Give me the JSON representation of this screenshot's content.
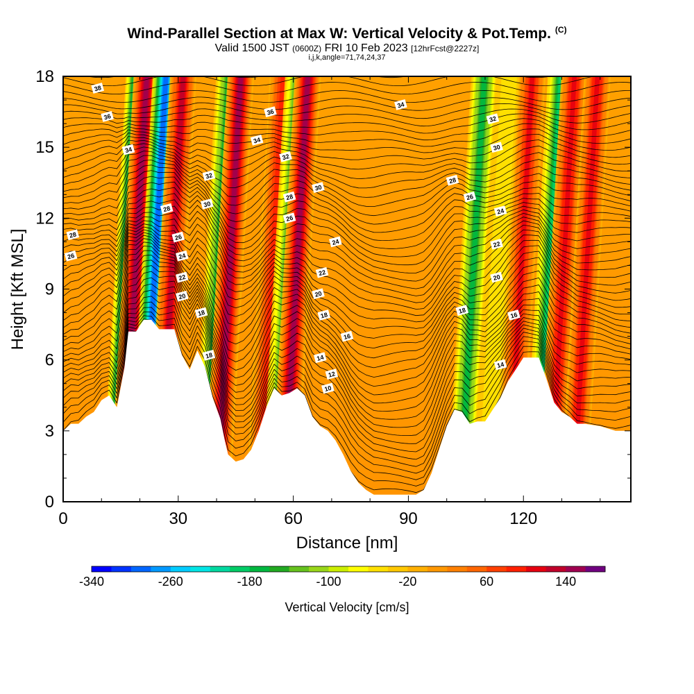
{
  "header": {
    "title": "Wind-Parallel Section at Max W: Vertical Velocity & Pot.Temp.",
    "copyright": "(C)",
    "subtitle_main": "Valid 1500 JST",
    "subtitle_utc": "(0600Z)",
    "subtitle_date": "FRI 10 Feb 2023",
    "subtitle_fcst": "[12hrFcst@2227z]",
    "subtitle_line2": "i,j,k,angle=71,74,24,37"
  },
  "chart_data": {
    "type": "heatmap",
    "xlabel": "Distance [nm]",
    "ylabel": "Height [Kft MSL]",
    "xlim": [
      0,
      148
    ],
    "ylim": [
      0,
      18
    ],
    "x_ticks": [
      "0",
      "30",
      "60",
      "90",
      "120"
    ],
    "y_ticks": [
      "0",
      "3",
      "6",
      "9",
      "12",
      "15",
      "18"
    ],
    "colorbar": {
      "label": "Vertical Velocity [cm/s]",
      "tick_labels": [
        "-340",
        "-260",
        "-180",
        "-100",
        "-20",
        "60",
        "140"
      ],
      "min": -340,
      "max": 180,
      "colors": [
        "#0000ff",
        "#0033ff",
        "#0066ff",
        "#0099ff",
        "#00ccff",
        "#00e5e5",
        "#00d8a0",
        "#00cc66",
        "#00b840",
        "#22aa22",
        "#66c21e",
        "#99d61a",
        "#ccee00",
        "#ffff00",
        "#ffe000",
        "#ffc800",
        "#ffb000",
        "#ff9800",
        "#ff8000",
        "#ff6600",
        "#ff4000",
        "#ff2000",
        "#e60010",
        "#c0002a",
        "#a00050",
        "#700080"
      ]
    },
    "terrain_kft": [
      [
        0,
        3
      ],
      [
        2,
        3.3
      ],
      [
        4,
        3.3
      ],
      [
        6,
        3.6
      ],
      [
        8,
        3.8
      ],
      [
        10,
        4.3
      ],
      [
        12,
        4.5
      ],
      [
        14,
        4
      ],
      [
        16,
        5.7
      ],
      [
        17,
        7.2
      ],
      [
        19,
        7.2
      ],
      [
        21,
        7.7
      ],
      [
        23,
        7.7
      ],
      [
        25,
        7.3
      ],
      [
        29,
        7.3
      ],
      [
        31,
        6.2
      ],
      [
        33,
        5.6
      ],
      [
        35,
        6.4
      ],
      [
        37,
        5.7
      ],
      [
        39,
        4.4
      ],
      [
        41,
        3.5
      ],
      [
        42,
        2.7
      ],
      [
        43,
        2
      ],
      [
        45,
        1.7
      ],
      [
        47,
        1.8
      ],
      [
        49,
        2.2
      ],
      [
        51,
        3
      ],
      [
        53,
        4
      ],
      [
        55,
        4.8
      ],
      [
        57,
        4.5
      ],
      [
        59,
        4.6
      ],
      [
        61,
        4.8
      ],
      [
        63,
        4.5
      ],
      [
        65,
        3.6
      ],
      [
        67,
        3.2
      ],
      [
        69,
        3
      ],
      [
        71,
        2.6
      ],
      [
        73,
        2
      ],
      [
        75,
        1.3
      ],
      [
        77,
        0.8
      ],
      [
        79,
        0.5
      ],
      [
        81,
        0.3
      ],
      [
        88,
        0.3
      ],
      [
        92,
        0.3
      ],
      [
        94,
        0.5
      ],
      [
        96,
        1.2
      ],
      [
        98,
        2.2
      ],
      [
        100,
        3.2
      ],
      [
        102,
        3.9
      ],
      [
        104,
        3.8
      ],
      [
        106,
        3.3
      ],
      [
        108,
        3.4
      ],
      [
        110,
        3.4
      ],
      [
        112,
        3.9
      ],
      [
        114,
        4.4
      ],
      [
        116,
        5.1
      ],
      [
        118,
        5.6
      ],
      [
        120,
        6.1
      ],
      [
        124,
        6.1
      ],
      [
        126,
        5.2
      ],
      [
        128,
        4.2
      ],
      [
        130,
        3.8
      ],
      [
        132,
        3.6
      ],
      [
        134,
        3.3
      ],
      [
        136,
        3.3
      ],
      [
        140,
        3.2
      ],
      [
        144,
        3
      ],
      [
        148,
        3
      ]
    ],
    "features": [
      {
        "x": 13.5,
        "w": -250
      },
      {
        "x": 15.5,
        "w": 140
      },
      {
        "x": 20.5,
        "w": -300
      },
      {
        "x": 25,
        "w": 120
      },
      {
        "x": 37,
        "w": -170
      },
      {
        "x": 40,
        "w": 150
      },
      {
        "x": 51,
        "w": 90
      },
      {
        "x": 55,
        "w": -150
      },
      {
        "x": 57.5,
        "w": 150
      },
      {
        "x": 103.5,
        "w": -170
      },
      {
        "x": 110,
        "w": -60
      },
      {
        "x": 116,
        "w": 100
      },
      {
        "x": 123.5,
        "w": -200
      },
      {
        "x": 127,
        "w": 110
      },
      {
        "x": 133,
        "w": 110
      }
    ],
    "contour_labels": [
      {
        "x": 9,
        "y": 17.5,
        "v": "38"
      },
      {
        "x": 11.5,
        "y": 16.3,
        "v": "36"
      },
      {
        "x": 17,
        "y": 14.9,
        "v": "34"
      },
      {
        "x": 2.5,
        "y": 11.3,
        "v": "28"
      },
      {
        "x": 2,
        "y": 10.4,
        "v": "26"
      },
      {
        "x": 27,
        "y": 12.4,
        "v": "28"
      },
      {
        "x": 30,
        "y": 11.2,
        "v": "26"
      },
      {
        "x": 31,
        "y": 10.4,
        "v": "24"
      },
      {
        "x": 31,
        "y": 9.5,
        "v": "22"
      },
      {
        "x": 31,
        "y": 8.7,
        "v": "20"
      },
      {
        "x": 36,
        "y": 8,
        "v": "18"
      },
      {
        "x": 38,
        "y": 6.2,
        "v": "18"
      },
      {
        "x": 38,
        "y": 13.8,
        "v": "32"
      },
      {
        "x": 37.5,
        "y": 12.6,
        "v": "30"
      },
      {
        "x": 54,
        "y": 16.5,
        "v": "36"
      },
      {
        "x": 50.5,
        "y": 15.3,
        "v": "34"
      },
      {
        "x": 58,
        "y": 14.6,
        "v": "32"
      },
      {
        "x": 66.5,
        "y": 13.3,
        "v": "30"
      },
      {
        "x": 59,
        "y": 12.9,
        "v": "28"
      },
      {
        "x": 59,
        "y": 12,
        "v": "26"
      },
      {
        "x": 71,
        "y": 11,
        "v": "24"
      },
      {
        "x": 67.5,
        "y": 9.7,
        "v": "22"
      },
      {
        "x": 66.5,
        "y": 8.8,
        "v": "20"
      },
      {
        "x": 68,
        "y": 7.9,
        "v": "18"
      },
      {
        "x": 74,
        "y": 7,
        "v": "16"
      },
      {
        "x": 67,
        "y": 6.1,
        "v": "14"
      },
      {
        "x": 70,
        "y": 5.4,
        "v": "12"
      },
      {
        "x": 69,
        "y": 4.8,
        "v": "10"
      },
      {
        "x": 88,
        "y": 16.8,
        "v": "34"
      },
      {
        "x": 112,
        "y": 16.2,
        "v": "32"
      },
      {
        "x": 113,
        "y": 15,
        "v": "30"
      },
      {
        "x": 101.5,
        "y": 13.6,
        "v": "28"
      },
      {
        "x": 106,
        "y": 12.9,
        "v": "26"
      },
      {
        "x": 114,
        "y": 12.3,
        "v": "24"
      },
      {
        "x": 113,
        "y": 10.9,
        "v": "22"
      },
      {
        "x": 113,
        "y": 9.5,
        "v": "20"
      },
      {
        "x": 104,
        "y": 8.1,
        "v": "18"
      },
      {
        "x": 117.5,
        "y": 7.9,
        "v": "16"
      },
      {
        "x": 114,
        "y": 5.8,
        "v": "14"
      }
    ]
  }
}
